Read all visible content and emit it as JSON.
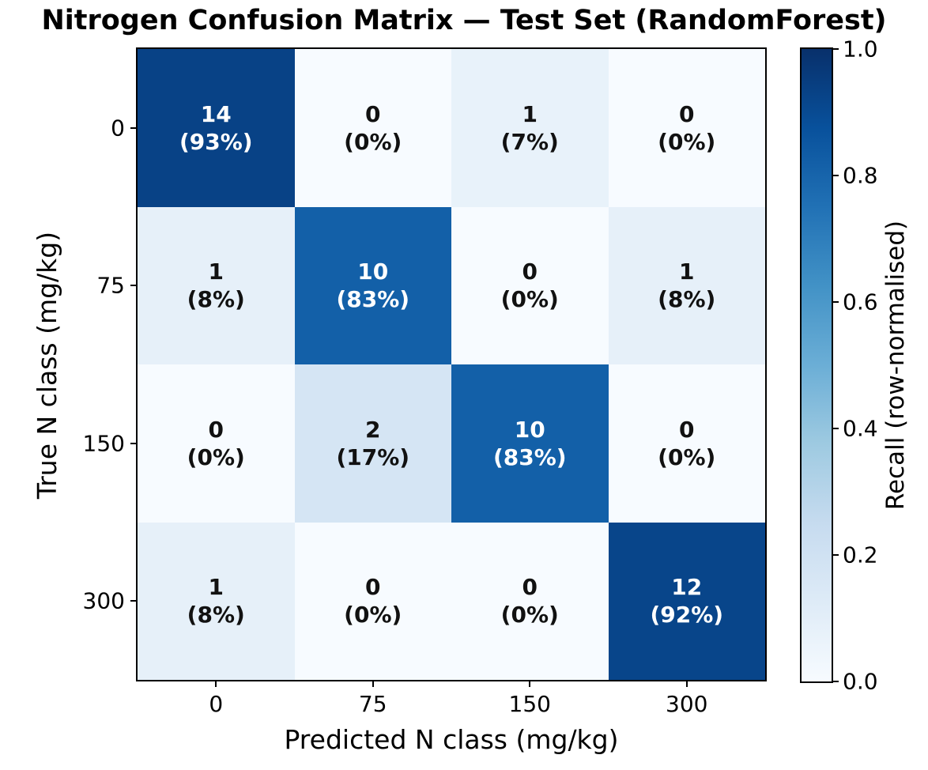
{
  "chart_data": {
    "type": "heatmap",
    "title": "Nitrogen Confusion Matrix — Test Set (RandomForest)",
    "xlabel": "Predicted N class (mg/kg)",
    "ylabel": "True N class (mg/kg)",
    "x_ticklabels": [
      "0",
      "75",
      "150",
      "300"
    ],
    "y_ticklabels": [
      "0",
      "75",
      "150",
      "300"
    ],
    "counts": [
      [
        14,
        0,
        1,
        0
      ],
      [
        1,
        10,
        0,
        1
      ],
      [
        0,
        2,
        10,
        0
      ],
      [
        1,
        0,
        0,
        12
      ]
    ],
    "row_percent": [
      [
        93,
        0,
        7,
        0
      ],
      [
        8,
        83,
        0,
        8
      ],
      [
        0,
        17,
        83,
        0
      ],
      [
        8,
        0,
        0,
        92
      ]
    ],
    "normalization": "row",
    "cell_colors": [
      [
        "#084286",
        "#f7fbff",
        "#e8f2fa",
        "#f7fbff"
      ],
      [
        "#e6f0f9",
        "#1360a8",
        "#f7fbff",
        "#e6f0f9"
      ],
      [
        "#f7fbff",
        "#d5e5f4",
        "#1360a8",
        "#f7fbff"
      ],
      [
        "#e6f0f9",
        "#f7fbff",
        "#f7fbff",
        "#08458a"
      ]
    ],
    "cell_text_dark_color": "#111111",
    "cell_text_light_color": "#ffffff",
    "colorbar": {
      "label": "Recall (row-normalised)",
      "ticks": [
        "1.0",
        "0.8",
        "0.6",
        "0.4",
        "0.2",
        "0.0"
      ],
      "range": [
        0.0,
        1.0
      ],
      "cmap": "Blues",
      "cmap_stops_top_to_bottom": [
        "#08306b",
        "#08519c",
        "#2171b5",
        "#4292c6",
        "#6baed6",
        "#9ecae1",
        "#c6dbef",
        "#deebf7",
        "#f7fbff"
      ]
    },
    "spine_color": "#000000",
    "legend": "none",
    "grid": "off"
  }
}
